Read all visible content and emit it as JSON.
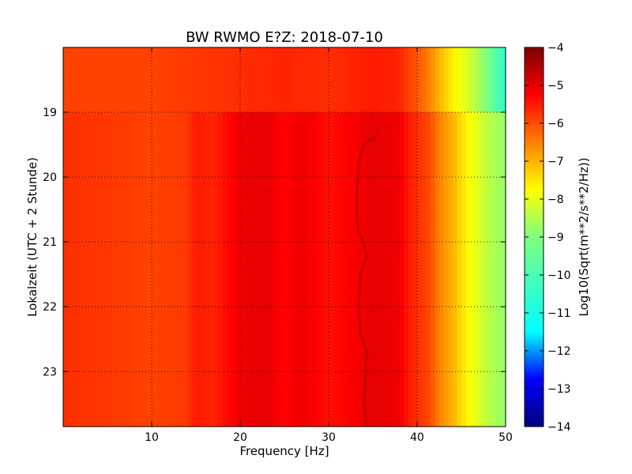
{
  "chart_data": {
    "type": "heatmap",
    "title": "BW RWMO E?Z: 2018-07-10",
    "xlabel": "Frequency [Hz]",
    "ylabel": "Lokalzeit (UTC + 2 Stunde)",
    "colorbar_label": "Log10(Sqrt(m**2/s**2/Hz))",
    "colormap": "jet",
    "xlim": [
      0,
      50
    ],
    "ylim": [
      18.0,
      23.85
    ],
    "y_inverted": true,
    "grid": true,
    "grid_style": "dotted",
    "x_ticks": [
      10,
      20,
      30,
      40,
      50
    ],
    "x_tick_labels": [
      "10",
      "20",
      "30",
      "40",
      "50"
    ],
    "y_ticks": [
      19,
      20,
      21,
      22,
      23
    ],
    "y_tick_labels": [
      "19",
      "20",
      "21",
      "22",
      "23"
    ],
    "clim": [
      -14,
      -4
    ],
    "colorbar_ticks": [
      -4,
      -5,
      -6,
      -7,
      -8,
      -9,
      -10,
      -11,
      -12,
      -13,
      -14
    ],
    "colorbar_tick_labels": [
      "−4",
      "−5",
      "−6",
      "−7",
      "−8",
      "−9",
      "−10",
      "−11",
      "−12",
      "−13",
      "−14"
    ],
    "spectrum_profile_before_19h": {
      "frequency_hz": [
        0,
        5,
        10,
        15,
        20,
        25,
        30,
        35,
        38,
        39,
        40,
        41,
        42,
        43,
        44,
        45,
        46,
        47,
        48,
        49,
        50
      ],
      "value": [
        -5.9,
        -5.9,
        -5.9,
        -5.8,
        -5.7,
        -5.6,
        -5.7,
        -5.5,
        -5.6,
        -5.9,
        -6.1,
        -6.4,
        -6.8,
        -7.2,
        -7.6,
        -7.9,
        -8.2,
        -8.6,
        -9.1,
        -9.9,
        -10.6
      ]
    },
    "spectrum_profile_after_19h": {
      "frequency_hz": [
        0,
        5,
        10,
        14,
        15,
        17,
        20,
        23,
        25,
        27,
        30,
        33,
        35,
        38,
        39,
        40,
        41,
        41.5,
        42,
        43,
        44,
        45,
        46,
        47,
        48,
        49,
        50
      ],
      "value": [
        -5.7,
        -5.8,
        -5.9,
        -5.8,
        -5.5,
        -5.6,
        -5.1,
        -5.0,
        -5.3,
        -5.1,
        -5.4,
        -5.2,
        -5.0,
        -5.1,
        -5.5,
        -5.7,
        -5.9,
        -6.0,
        -6.3,
        -6.7,
        -7.0,
        -7.4,
        -7.8,
        -8.1,
        -8.4,
        -8.6,
        -8.8
      ]
    },
    "tonal_line": {
      "description_free": true,
      "time_h": [
        19.35,
        19.5,
        19.7,
        20.0,
        20.4,
        20.8,
        21.0,
        21.2,
        21.5,
        22.0,
        22.4,
        22.7,
        23.0,
        23.5,
        23.85
      ],
      "frequency_hz": [
        35.5,
        34.0,
        33.5,
        33.3,
        33.2,
        33.3,
        33.9,
        34.3,
        33.6,
        33.4,
        33.6,
        34.3,
        34.2,
        34.0,
        34.2
      ],
      "value": -4.7
    },
    "colorbar_stops": [
      {
        "value": -14,
        "color": "#00007f"
      },
      {
        "value": -12.75,
        "color": "#0000ff"
      },
      {
        "value": -11.5,
        "color": "#00ffff"
      },
      {
        "value": -9,
        "color": "#7fff7f"
      },
      {
        "value": -7.75,
        "color": "#ffff00"
      },
      {
        "value": -6.5,
        "color": "#ff7f00"
      },
      {
        "value": -5.25,
        "color": "#ff0000"
      },
      {
        "value": -4,
        "color": "#7f0000"
      }
    ]
  }
}
